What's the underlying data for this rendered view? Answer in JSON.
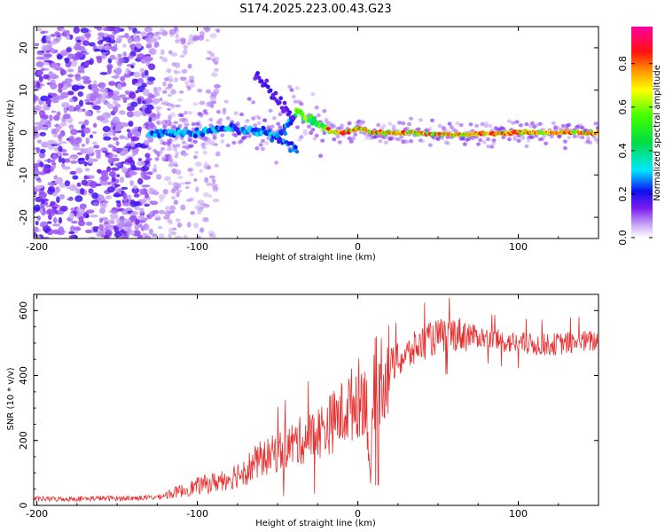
{
  "title": "S174.2025.223.00.43.G23",
  "chart_data": [
    {
      "type": "heatmap",
      "title": "S174.2025.223.00.43.G23",
      "xlabel": "Height of straight line (km)",
      "ylabel": "Frequency (Hz)",
      "xlim": [
        -202,
        150
      ],
      "ylim": [
        -25,
        25
      ],
      "xticks": [
        -200,
        -100,
        0,
        100
      ],
      "yticks": [
        -20,
        -10,
        0,
        10,
        20
      ],
      "colorbar": {
        "label": "Normalized spectral amplitude",
        "range": [
          0,
          0.97
        ],
        "ticks": [
          0.0,
          0.2,
          0.4,
          0.6,
          0.8
        ]
      },
      "signal_track": {
        "x": [
          -130,
          -100,
          -80,
          -60,
          -50,
          -42,
          -38,
          -30,
          -22,
          -15,
          -8,
          0,
          10,
          30,
          60,
          100,
          150
        ],
        "frequency": [
          0,
          0,
          1,
          0,
          -1,
          3,
          5,
          3,
          1.5,
          0,
          0,
          1,
          0,
          0,
          -0.5,
          0,
          0
        ]
      }
    },
    {
      "type": "line",
      "xlabel": "Height of straight line (km)",
      "ylabel": "SNR (10 * v/v)",
      "xlim": [
        -202,
        150
      ],
      "ylim": [
        0,
        650
      ],
      "xticks": [
        -200,
        -100,
        0,
        100
      ],
      "yticks": [
        0,
        200,
        400,
        600
      ],
      "series": [
        {
          "name": "SNR",
          "color": "#e83030",
          "x": [
            -202,
            -180,
            -160,
            -140,
            -125,
            -110,
            -100,
            -90,
            -80,
            -70,
            -60,
            -50,
            -40,
            -30,
            -20,
            -10,
            0,
            5,
            8,
            10,
            15,
            20,
            30,
            40,
            50,
            60,
            70,
            80,
            90,
            100,
            110,
            120,
            130,
            140,
            150
          ],
          "values": [
            20,
            20,
            22,
            22,
            25,
            45,
            60,
            70,
            85,
            110,
            140,
            165,
            190,
            210,
            240,
            280,
            330,
            350,
            70,
            370,
            400,
            430,
            460,
            500,
            520,
            530,
            525,
            515,
            505,
            500,
            495,
            495,
            500,
            505,
            505
          ]
        }
      ]
    }
  ]
}
